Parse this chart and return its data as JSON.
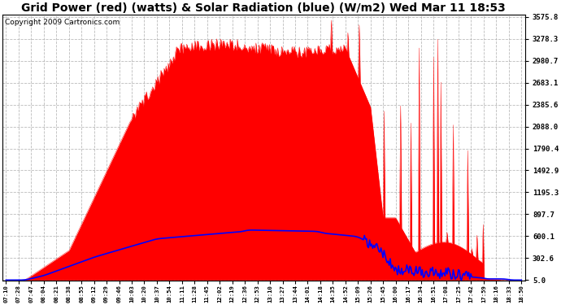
{
  "title": "Grid Power (red) (watts) & Solar Radiation (blue) (W/m2) Wed Mar 11 18:53",
  "copyright": "Copyright 2009 Cartronics.com",
  "yticks": [
    5.0,
    302.6,
    600.1,
    897.7,
    1195.3,
    1492.9,
    1790.4,
    2088.0,
    2385.6,
    2683.1,
    2980.7,
    3278.3,
    3575.8
  ],
  "ymin": 5.0,
  "ymax": 3575.8,
  "bg_color": "#ffffff",
  "red_color": "#ff0000",
  "blue_color": "#0000ff",
  "grid_color": "#aaaaaa",
  "title_fontsize": 10,
  "copyright_fontsize": 6.5,
  "x_tick_labels": [
    "07:10",
    "07:28",
    "07:47",
    "08:04",
    "08:21",
    "08:38",
    "08:55",
    "09:12",
    "09:29",
    "09:46",
    "10:03",
    "10:20",
    "10:37",
    "10:54",
    "11:11",
    "11:28",
    "11:45",
    "12:02",
    "12:19",
    "12:36",
    "12:53",
    "13:10",
    "13:27",
    "13:44",
    "14:01",
    "14:18",
    "14:35",
    "14:52",
    "15:09",
    "15:26",
    "15:45",
    "16:00",
    "16:17",
    "16:34",
    "16:51",
    "17:08",
    "17:25",
    "17:42",
    "17:59",
    "18:16",
    "18:33",
    "18:50"
  ]
}
